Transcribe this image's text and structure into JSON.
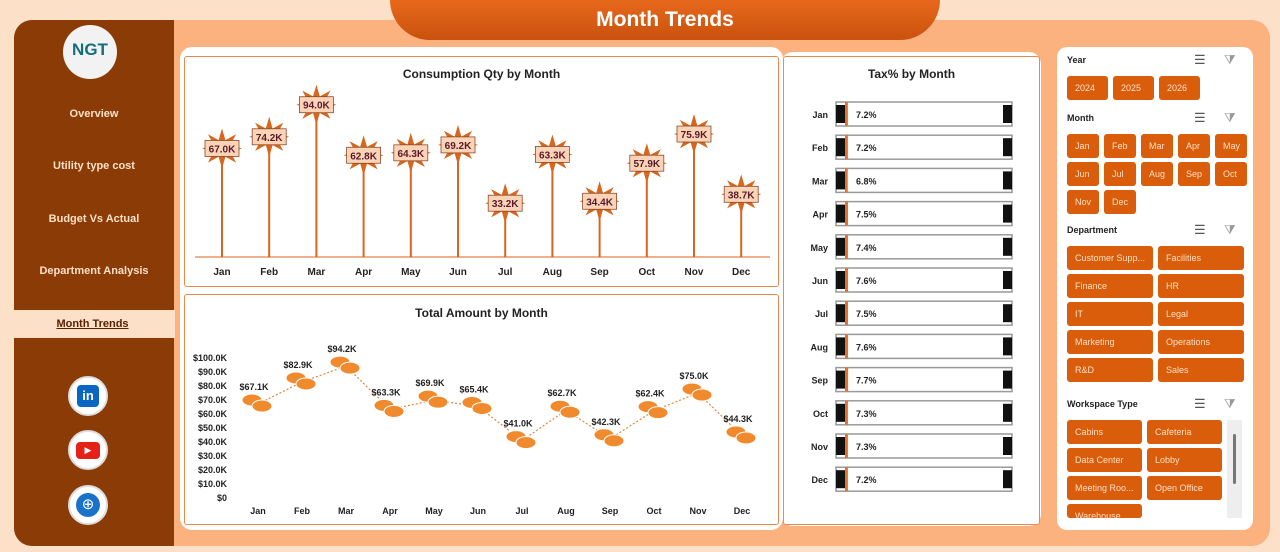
{
  "title": "Month Trends",
  "logo": "NGT",
  "nav": [
    "Overview",
    "Utility type cost",
    "Budget Vs Actual",
    "Department Analysis",
    "Month Trends"
  ],
  "active_nav": "Month Trends",
  "social": [
    "linkedin-icon",
    "youtube-icon",
    "globe-icon"
  ],
  "colors": {
    "accent": "#d95d0a",
    "sidebar": "#8b3c06",
    "background": "#fbb27f"
  },
  "chart_data": [
    {
      "type": "bar",
      "title": "Consumption Qty by Month",
      "categories": [
        "Jan",
        "Feb",
        "Mar",
        "Apr",
        "May",
        "Jun",
        "Jul",
        "Aug",
        "Sep",
        "Oct",
        "Nov",
        "Dec"
      ],
      "values": [
        67.0,
        74.2,
        94.0,
        62.8,
        64.3,
        69.2,
        33.2,
        63.3,
        34.4,
        57.9,
        75.9,
        38.7
      ],
      "labels": [
        "67.0K",
        "74.2K",
        "94.0K",
        "62.8K",
        "64.3K",
        "69.2K",
        "33.2K",
        "63.3K",
        "34.4K",
        "57.9K",
        "75.9K",
        "38.7K"
      ],
      "unit": "K"
    },
    {
      "type": "line",
      "title": "Total Amount by Month",
      "categories": [
        "Jan",
        "Feb",
        "Mar",
        "Apr",
        "May",
        "Jun",
        "Jul",
        "Aug",
        "Sep",
        "Oct",
        "Nov",
        "Dec"
      ],
      "values": [
        67.1,
        82.9,
        94.2,
        63.3,
        69.9,
        65.4,
        41.0,
        62.7,
        42.3,
        62.4,
        75.0,
        44.3
      ],
      "labels": [
        "$67.1K",
        "$82.9K",
        "$94.2K",
        "$63.3K",
        "$69.9K",
        "$65.4K",
        "$41.0K",
        "$62.7K",
        "$42.3K",
        "$62.4K",
        "$75.0K",
        "$44.3K"
      ],
      "yticks": [
        "$0",
        "$10.0K",
        "$20.0K",
        "$30.0K",
        "$40.0K",
        "$50.0K",
        "$60.0K",
        "$70.0K",
        "$80.0K",
        "$90.0K",
        "$100.0K"
      ],
      "ylim": [
        0,
        100
      ]
    },
    {
      "type": "bar",
      "orientation": "horizontal",
      "title": "Tax% by Month",
      "categories": [
        "Jan",
        "Feb",
        "Mar",
        "Apr",
        "May",
        "Jun",
        "Jul",
        "Aug",
        "Sep",
        "Oct",
        "Nov",
        "Dec"
      ],
      "values": [
        7.2,
        7.2,
        6.8,
        7.5,
        7.4,
        7.6,
        7.5,
        7.6,
        7.7,
        7.3,
        7.3,
        7.2
      ],
      "labels": [
        "7.2%",
        "7.2%",
        "6.8%",
        "7.5%",
        "7.4%",
        "7.6%",
        "7.5%",
        "7.6%",
        "7.7%",
        "7.3%",
        "7.3%",
        "7.2%"
      ],
      "xlim": [
        0,
        100
      ]
    }
  ],
  "slicers": [
    {
      "title": "Year",
      "items": [
        "2024",
        "2025",
        "2026"
      ]
    },
    {
      "title": "Month",
      "items": [
        "Jan",
        "Feb",
        "Mar",
        "Apr",
        "May",
        "Jun",
        "Jul",
        "Aug",
        "Sep",
        "Oct",
        "Nov",
        "Dec"
      ]
    },
    {
      "title": "Department",
      "items": [
        "Customer Supp...",
        "Facilities",
        "Finance",
        "HR",
        "IT",
        "Legal",
        "Marketing",
        "Operations",
        "R&D",
        "Sales"
      ]
    },
    {
      "title": "Workspace Type",
      "items": [
        "Cabins",
        "Cafeteria",
        "Data Center",
        "Lobby",
        "Meeting Roo...",
        "Open Office",
        "Warehouse"
      ]
    }
  ]
}
